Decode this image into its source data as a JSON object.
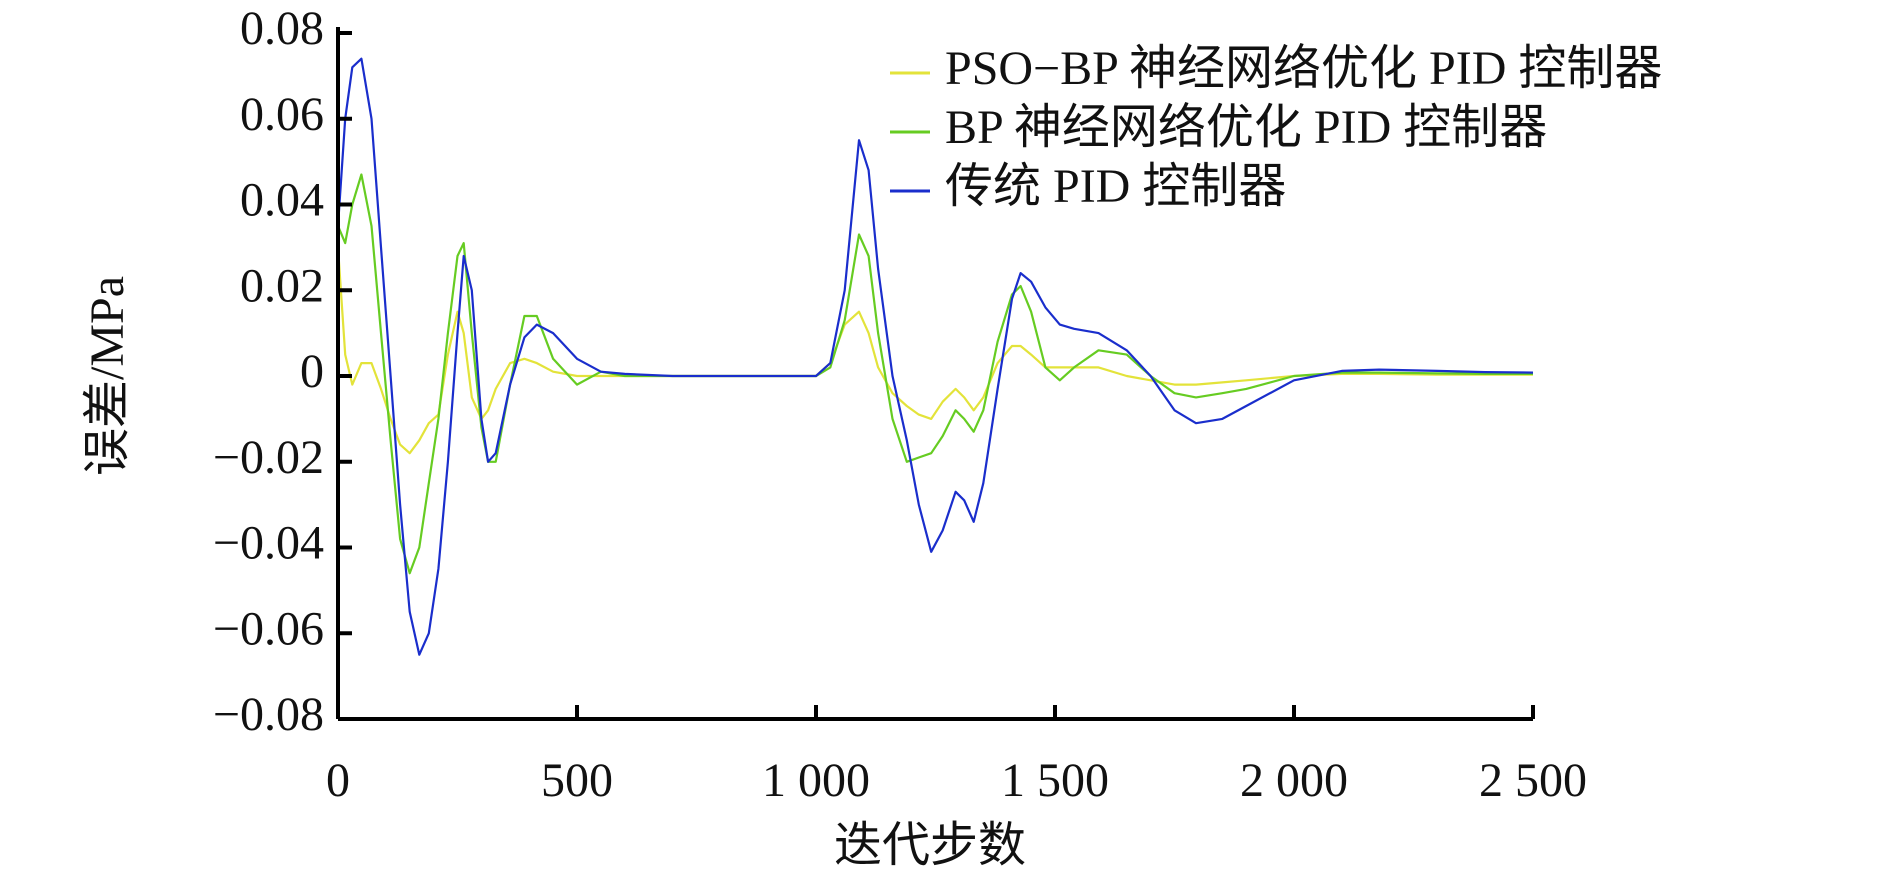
{
  "chart_data": {
    "type": "line",
    "xlabel": "迭代步数",
    "ylabel": "误差/MPa",
    "x": [
      0,
      15,
      30,
      49,
      70,
      90,
      110,
      130,
      150,
      170,
      190,
      210,
      230,
      250,
      263,
      280,
      300,
      314,
      330,
      360,
      390,
      416,
      450,
      500,
      550,
      600,
      700,
      800,
      900,
      1000,
      1030,
      1060,
      1090,
      1110,
      1130,
      1160,
      1190,
      1215,
      1241,
      1265,
      1292,
      1310,
      1330,
      1350,
      1380,
      1410,
      1428,
      1450,
      1480,
      1510,
      1540,
      1591,
      1650,
      1700,
      1750,
      1795,
      1850,
      1900,
      2000,
      2100,
      2178,
      2300,
      2400,
      2500
    ],
    "series": [
      {
        "name": "PSO−BP 神经网络优化 PID 控制器",
        "color": "#e3e33a",
        "values": [
          0.03,
          0.005,
          -0.002,
          0.003,
          0.003,
          -0.003,
          -0.01,
          -0.016,
          -0.018,
          -0.015,
          -0.011,
          -0.009,
          0.005,
          0.015,
          0.01,
          -0.005,
          -0.01,
          -0.008,
          -0.003,
          0.003,
          0.004,
          0.003,
          0.001,
          0,
          0,
          0,
          0,
          0,
          0,
          0,
          0.003,
          0.012,
          0.015,
          0.01,
          0.002,
          -0.004,
          -0.007,
          -0.009,
          -0.01,
          -0.006,
          -0.003,
          -0.005,
          -0.008,
          -0.005,
          0.003,
          0.007,
          0.007,
          0.005,
          0.002,
          0.002,
          0.002,
          0.002,
          0,
          -0.001,
          -0.002,
          -0.002,
          -0.0015,
          -0.001,
          0,
          0.0005,
          0.0005,
          0.0003,
          0.0003,
          0.0003
        ]
      },
      {
        "name": "BP 神经网络优化 PID 控制器",
        "color": "#66cc22",
        "values": [
          0.035,
          0.031,
          0.04,
          0.047,
          0.035,
          0.01,
          -0.015,
          -0.038,
          -0.046,
          -0.04,
          -0.025,
          -0.01,
          0.01,
          0.028,
          0.031,
          0.01,
          -0.012,
          -0.02,
          -0.02,
          -0.002,
          0.014,
          0.014,
          0.004,
          -0.002,
          0.001,
          0,
          0,
          0,
          0,
          0,
          0.002,
          0.013,
          0.033,
          0.028,
          0.01,
          -0.01,
          -0.02,
          -0.019,
          -0.018,
          -0.014,
          -0.008,
          -0.01,
          -0.013,
          -0.008,
          0.008,
          0.019,
          0.021,
          0.015,
          0.002,
          -0.001,
          0.002,
          0.006,
          0.005,
          0,
          -0.004,
          -0.005,
          -0.004,
          -0.003,
          0,
          0.0008,
          0.0008,
          0.0006,
          0.0005,
          0.0005
        ]
      },
      {
        "name": "传统 PID 控制器",
        "color": "#1a2ecc",
        "values": [
          0.035,
          0.06,
          0.072,
          0.074,
          0.06,
          0.03,
          0,
          -0.03,
          -0.055,
          -0.065,
          -0.06,
          -0.045,
          -0.02,
          0.01,
          0.028,
          0.02,
          -0.01,
          -0.02,
          -0.018,
          -0.002,
          0.009,
          0.012,
          0.01,
          0.004,
          0.001,
          0.0005,
          0,
          0,
          0,
          0,
          0.003,
          0.02,
          0.055,
          0.048,
          0.025,
          0,
          -0.015,
          -0.03,
          -0.041,
          -0.036,
          -0.027,
          -0.029,
          -0.034,
          -0.025,
          -0.003,
          0.018,
          0.024,
          0.022,
          0.016,
          0.012,
          0.011,
          0.01,
          0.006,
          0,
          -0.008,
          -0.011,
          -0.01,
          -0.007,
          -0.001,
          0.0012,
          0.0015,
          0.0012,
          0.0009,
          0.0008
        ]
      }
    ],
    "xlim": [
      0,
      2500
    ],
    "xticks": [
      0,
      500,
      {
        "value": 1000,
        "label": "1 000"
      },
      {
        "value": 1500,
        "label": "1 500"
      },
      {
        "value": 2000,
        "label": "2 000"
      },
      {
        "value": 2500,
        "label": "2 500"
      }
    ],
    "ylim": [
      -0.08,
      0.08
    ],
    "yticks": [
      {
        "value": -0.08,
        "label": "−0.08"
      },
      {
        "value": -0.06,
        "label": "−0.06"
      },
      {
        "value": -0.04,
        "label": "−0.04"
      },
      {
        "value": -0.02,
        "label": "−0.02"
      },
      0,
      0.02,
      0.04,
      0.06,
      0.08
    ],
    "legend": "upper right",
    "grid": false
  }
}
